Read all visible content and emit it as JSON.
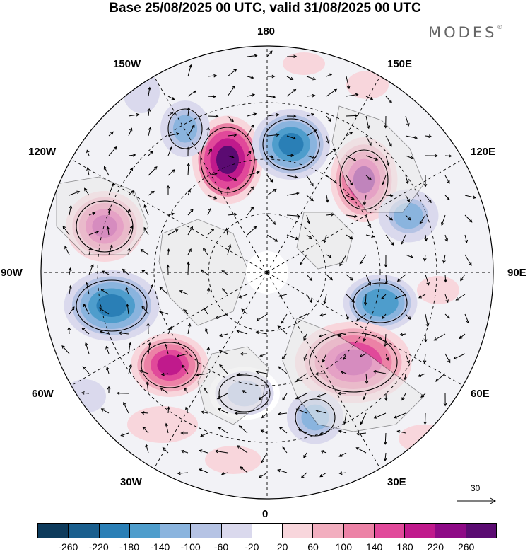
{
  "header": {
    "title": "Base 25/08/2025 00 UTC, valid 31/08/2025 00 UTC",
    "brand": "MODES",
    "brand_mark": "©"
  },
  "map": {
    "projection": "north-polar-stereographic",
    "longitude_labels": [
      "180",
      "150E",
      "120E",
      "90E",
      "60E",
      "30E",
      "0",
      "30W",
      "60W",
      "90W",
      "120W",
      "150W"
    ],
    "wind_reference_vector": "30",
    "anomaly_centers": [
      {
        "sign": "positive",
        "region": "north of Alaska",
        "max": 260
      },
      {
        "sign": "negative",
        "region": "Bering Sea",
        "min": -200
      },
      {
        "sign": "positive",
        "region": "East Siberia",
        "max": 220
      },
      {
        "sign": "negative",
        "region": "Central Siberia",
        "min": -140
      },
      {
        "sign": "negative",
        "region": "Kara Sea",
        "min": -180
      },
      {
        "sign": "positive",
        "region": "West Siberia",
        "max": 180
      },
      {
        "sign": "negative",
        "region": "Eastern Europe",
        "min": -140
      },
      {
        "sign": "negative",
        "region": "North Atlantic",
        "min": -100
      },
      {
        "sign": "positive",
        "region": "Greenland Sea",
        "max": 180
      },
      {
        "sign": "negative",
        "region": "Hudson Bay",
        "min": -200
      },
      {
        "sign": "positive",
        "region": "Gulf of Alaska",
        "max": 180
      },
      {
        "sign": "negative",
        "region": "Canadian Archipelago",
        "min": -140
      }
    ]
  },
  "colorbar": {
    "colors": [
      "#0d3b5c",
      "#1a5f8e",
      "#2a7fb6",
      "#4e9dcc",
      "#8ab4de",
      "#b5c3e4",
      "#dad9ed",
      "#ffffff",
      "#f8d6dc",
      "#f2aebf",
      "#ec82a6",
      "#e1499a",
      "#c01a8c",
      "#8e0a86",
      "#5b0b72"
    ],
    "ticks": [
      "-260",
      "-220",
      "-180",
      "-140",
      "-100",
      "-60",
      "-20",
      "20",
      "60",
      "100",
      "140",
      "180",
      "220",
      "260"
    ]
  },
  "icons": {
    "scale_arrow": "right-arrow-icon"
  }
}
